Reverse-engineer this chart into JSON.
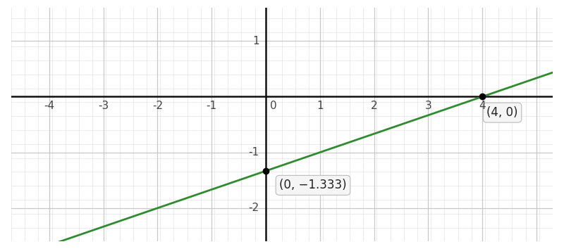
{
  "xlim": [
    -4.7,
    5.3
  ],
  "ylim": [
    -2.6,
    1.6
  ],
  "xticks": [
    -4,
    -3,
    -2,
    -1,
    1,
    2,
    3,
    4
  ],
  "yticks": [
    -2,
    -1,
    1
  ],
  "x_zero_label": "0",
  "slope": 0.3333333333333333,
  "y_intercept": -1.3333333333333333,
  "line_color": "#2e8b2e",
  "line_width": 2.0,
  "point1": [
    0,
    -1.3333333333333333
  ],
  "point2": [
    4,
    0
  ],
  "point1_label": "(0, −1.333)",
  "point2_label": "(4, 0)",
  "point_color": "black",
  "point_size": 6,
  "bg_color": "#ffffff",
  "grid_major_color": "#c8c8c8",
  "grid_minor_color": "#e4e4e4",
  "axis_color": "#111111",
  "axis_linewidth": 1.8,
  "tick_label_color": "#444444",
  "tick_fontsize": 11,
  "annotation_fontsize": 12,
  "annotation_bg": "#f5f5f5",
  "annotation_border": "#bbbbbb",
  "minor_step": 0.25
}
